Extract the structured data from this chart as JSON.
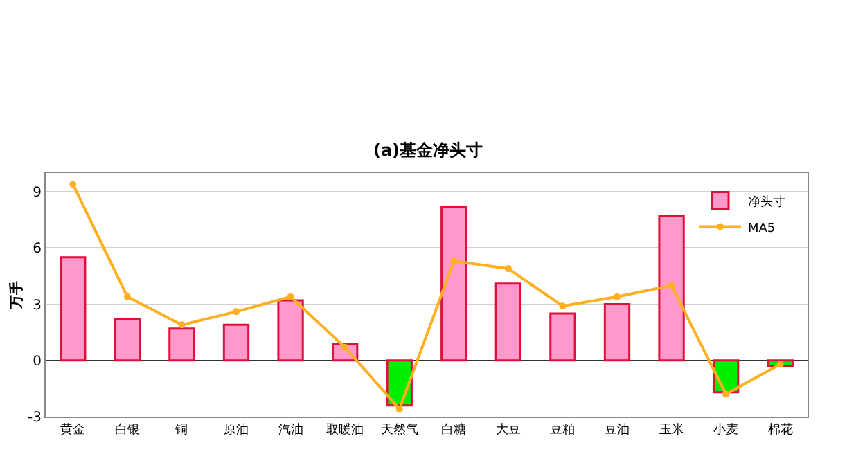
{
  "chart_data": {
    "type": "bar",
    "title": "(a)基金净头寸",
    "ylabel": "万手",
    "categories": [
      "黄金",
      "白银",
      "铜",
      "原油",
      "汽油",
      "取暖油",
      "天然气",
      "白糖",
      "大豆",
      "豆粕",
      "豆油",
      "玉米",
      "小麦",
      "棉花"
    ],
    "series": [
      {
        "name": "净头寸",
        "color": "#ff99cc",
        "colors": [
          "#ff99cc",
          "#ff99cc",
          "#ff99cc",
          "#ff99cc",
          "#ff99cc",
          "#ff99cc",
          "#00ee00",
          "#ff99cc",
          "#ff99cc",
          "#ff99cc",
          "#ff99cc",
          "#ff99cc",
          "#00ee00",
          "#00ee00"
        ],
        "values": [
          5.5,
          2.2,
          1.7,
          1.9,
          3.2,
          0.9,
          -2.4,
          8.2,
          4.1,
          2.5,
          3.0,
          7.7,
          -1.7,
          -0.3
        ]
      },
      {
        "name": "MA5",
        "type": "line",
        "color": "#ffb020",
        "marker": "circle",
        "values": [
          9.4,
          3.4,
          1.9,
          2.6,
          3.4,
          0.7,
          -2.6,
          5.3,
          4.9,
          2.9,
          3.4,
          4.0,
          -1.8,
          -0.2
        ]
      }
    ],
    "ylim": [
      -3,
      10
    ],
    "yticks": [
      -3,
      0,
      3,
      6,
      9
    ],
    "grid": "y",
    "legend": "top right"
  }
}
